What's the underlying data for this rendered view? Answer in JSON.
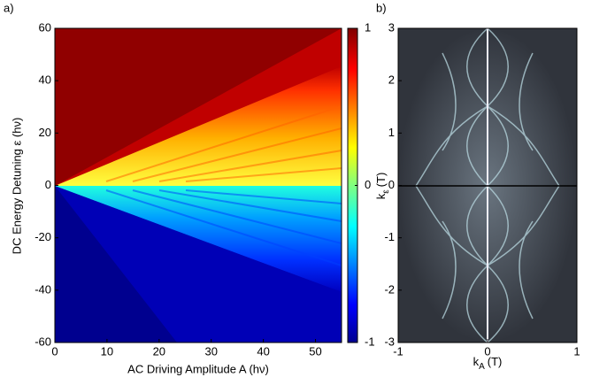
{
  "chart_data": [
    {
      "type": "heatmap",
      "panel_label": "a)",
      "xlabel": "AC Driving Amplitude A (hν)",
      "ylabel": "DC Energy Detuning ε (hν)",
      "xlim": [
        0,
        55
      ],
      "xticks": [
        0,
        10,
        20,
        30,
        40,
        50
      ],
      "ylim": [
        -60,
        60
      ],
      "yticks": [
        -60,
        -40,
        -20,
        0,
        20,
        40,
        60
      ],
      "colorbar": {
        "lim": [
          -1,
          1
        ],
        "ticks": [
          -1,
          0,
          1
        ]
      }
    },
    {
      "type": "heatmap",
      "panel_label": "b)",
      "xlabel": {
        "symbol": "k",
        "subscript": "A",
        "unit": "(T)"
      },
      "ylabel": {
        "symbol": "k",
        "subscript": "ε",
        "unit": "(T)"
      },
      "xlim": [
        -1,
        1
      ],
      "xticks": [
        -1,
        0,
        1
      ],
      "ylim": [
        -3,
        3
      ],
      "yticks": [
        -3,
        -2,
        -1,
        0,
        1,
        2,
        3
      ]
    }
  ]
}
